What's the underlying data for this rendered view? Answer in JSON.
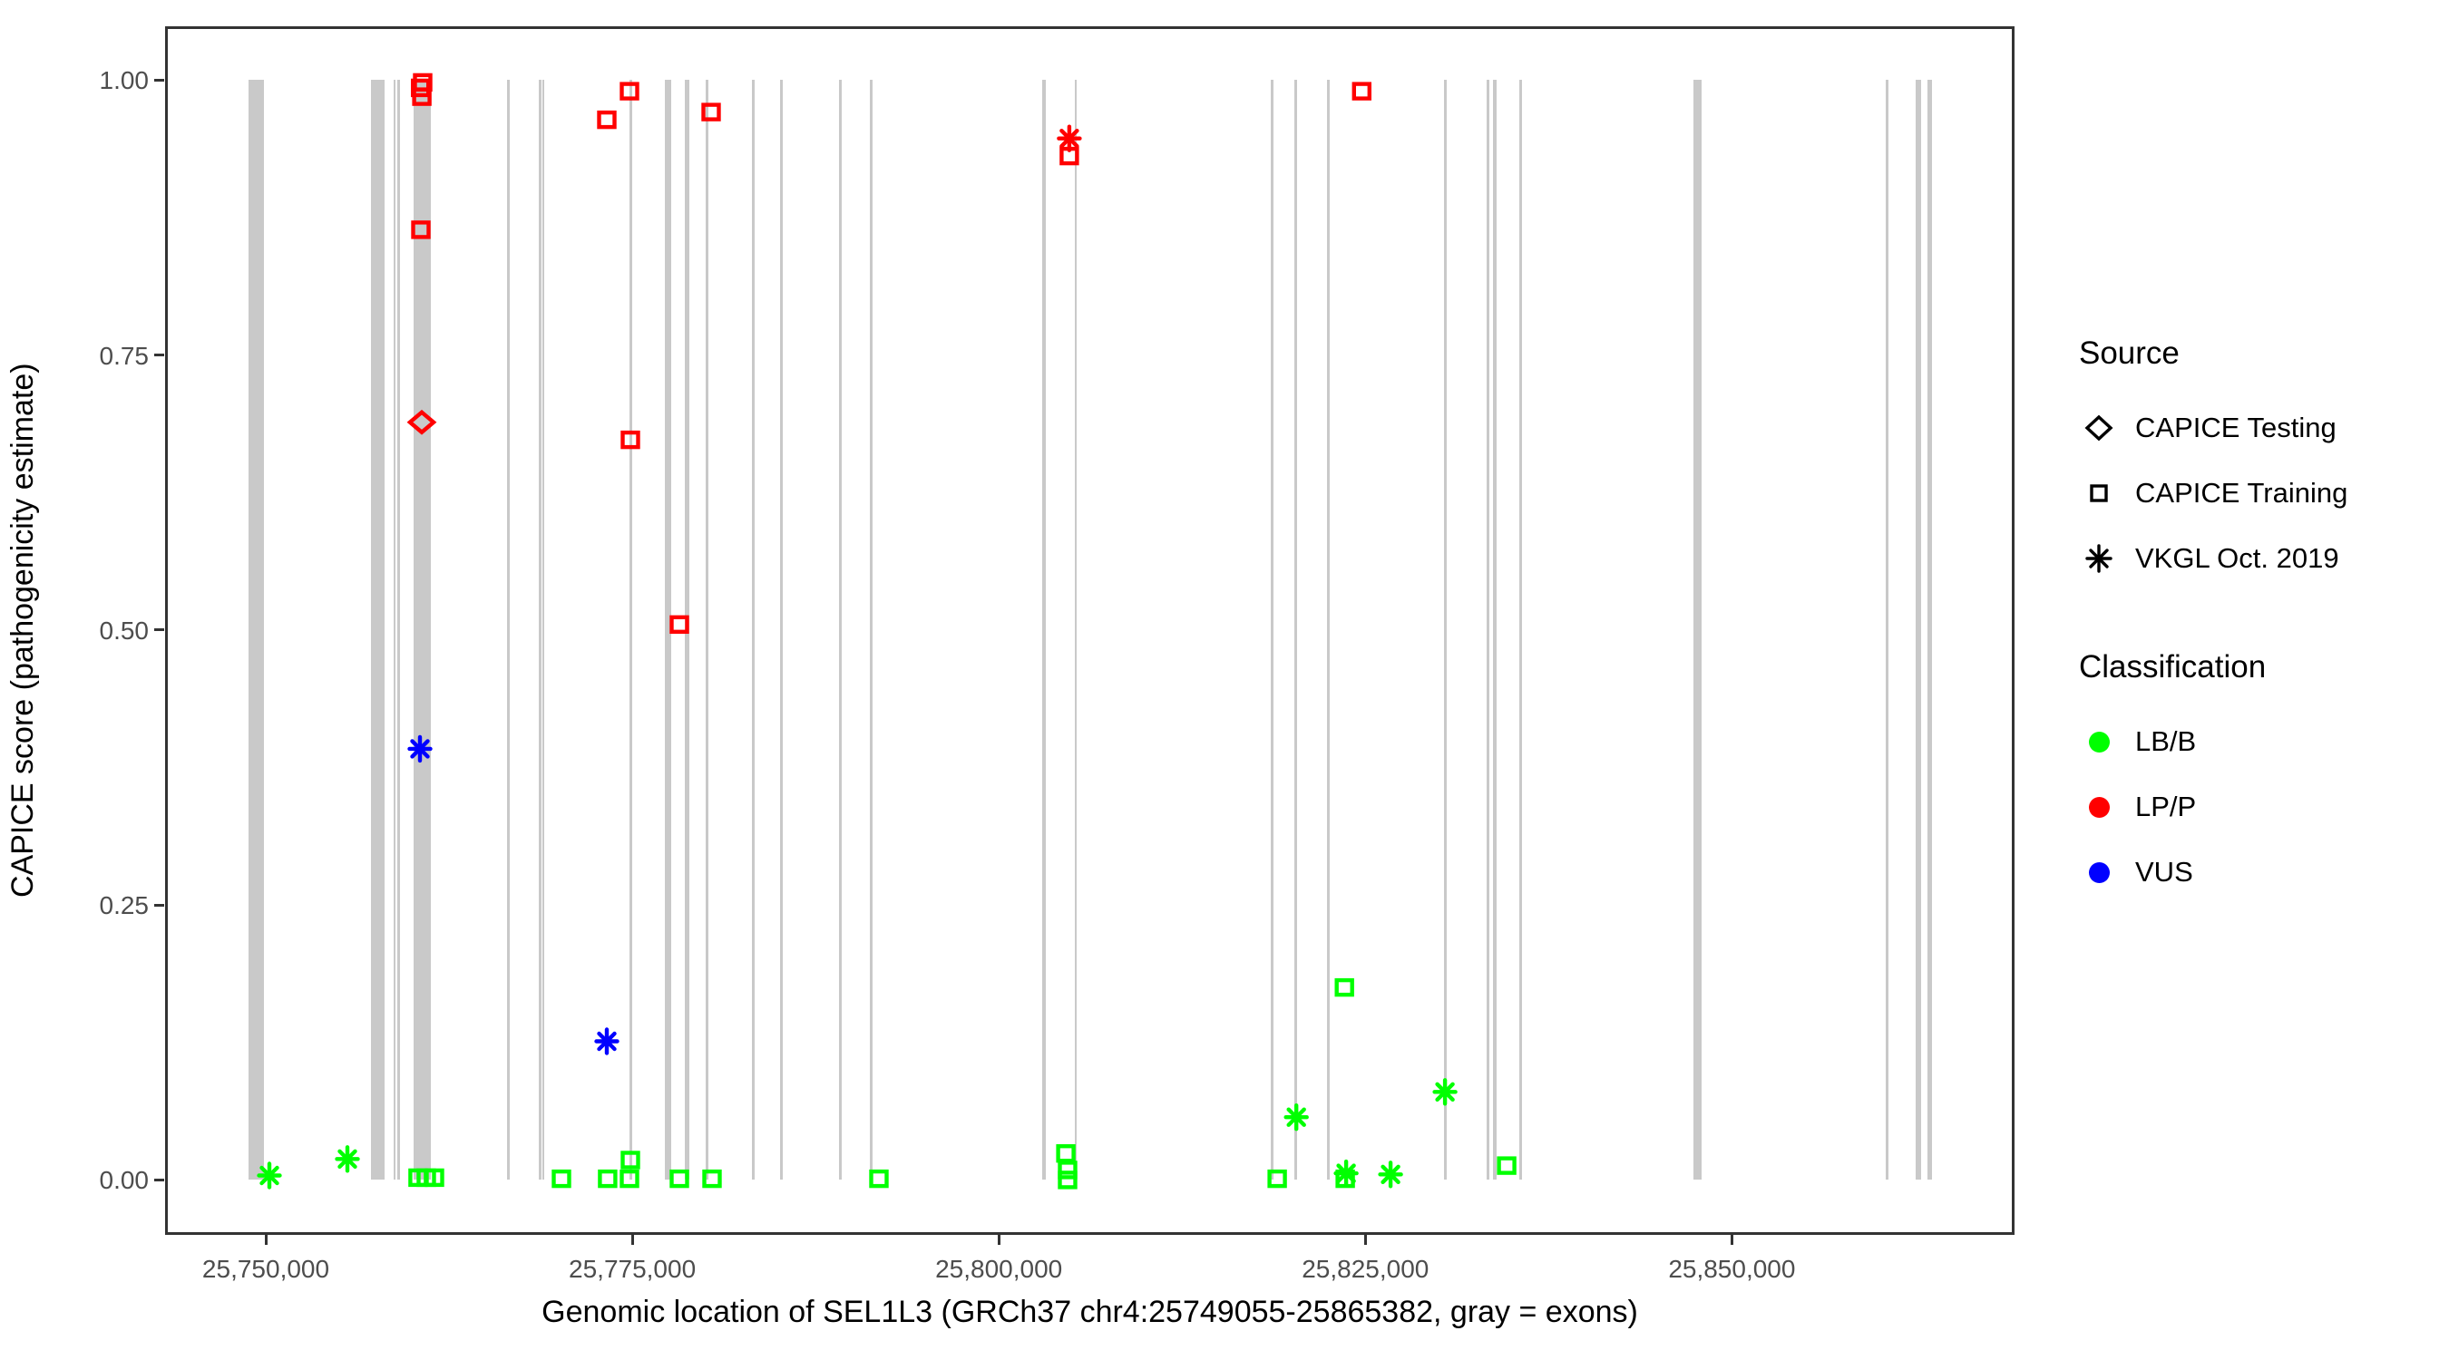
{
  "chart_data": {
    "type": "scatter",
    "title": "",
    "xlabel": "Genomic location of SEL1L3 (GRCh37 chr4:25749055-25865382, gray = exons)",
    "ylabel": "CAPICE score (pathogenicity estimate)",
    "xlim": [
      25743133,
      25869278
    ],
    "ylim": [
      -0.05,
      1.049
    ],
    "grid": false,
    "x_ticks": [
      25750000,
      25775000,
      25800000,
      25825000,
      25850000
    ],
    "x_tick_labels": [
      "25,750,000",
      "25,775,000",
      "25,800,000",
      "25,825,000",
      "25,850,000"
    ],
    "y_ticks": [
      0,
      0.25,
      0.5,
      0.75,
      1
    ],
    "y_tick_labels": [
      "0.00",
      "0.25",
      "0.50",
      "0.75",
      "1.00"
    ],
    "exon_color": "#C9C9C9",
    "exon_y_range": [
      0,
      1
    ],
    "exons": [
      [
        25748830,
        25749880
      ],
      [
        25757180,
        25758100
      ],
      [
        25758720,
        25758880
      ],
      [
        25758970,
        25759130
      ],
      [
        25760080,
        25761260
      ],
      [
        25766460,
        25766580
      ],
      [
        25768620,
        25768780
      ],
      [
        25768840,
        25769000
      ],
      [
        25774810,
        25775000
      ],
      [
        25777220,
        25777660
      ],
      [
        25778580,
        25778890
      ],
      [
        25780010,
        25780190
      ],
      [
        25783160,
        25783350
      ],
      [
        25785080,
        25785260
      ],
      [
        25789100,
        25789290
      ],
      [
        25791200,
        25791390
      ],
      [
        25802960,
        25803210
      ],
      [
        25805180,
        25805310
      ],
      [
        25818550,
        25818730
      ],
      [
        25820160,
        25820340
      ],
      [
        25822380,
        25822570
      ],
      [
        25830370,
        25830550
      ],
      [
        25833270,
        25833400
      ],
      [
        25833710,
        25833950
      ],
      [
        25835500,
        25835690
      ],
      [
        25847380,
        25847940
      ],
      [
        25860500,
        25860620
      ],
      [
        25862540,
        25862910
      ],
      [
        25863340,
        25863650
      ]
    ],
    "points": [
      {
        "pos": 25760700,
        "score": 0.998,
        "source": "CAPICE Training",
        "classification": "LP/P"
      },
      {
        "pos": 25760560,
        "score": 0.993,
        "source": "CAPICE Training",
        "classification": "LP/P"
      },
      {
        "pos": 25760650,
        "score": 0.985,
        "source": "CAPICE Training",
        "classification": "LP/P"
      },
      {
        "pos": 25760580,
        "score": 0.864,
        "source": "CAPICE Training",
        "classification": "LP/P"
      },
      {
        "pos": 25760640,
        "score": 0.689,
        "source": "CAPICE Testing",
        "classification": "LP/P"
      },
      {
        "pos": 25773260,
        "score": 0.964,
        "source": "CAPICE Training",
        "classification": "LP/P"
      },
      {
        "pos": 25774810,
        "score": 0.99,
        "source": "CAPICE Training",
        "classification": "LP/P"
      },
      {
        "pos": 25780375,
        "score": 0.971,
        "source": "CAPICE Training",
        "classification": "LP/P"
      },
      {
        "pos": 25774870,
        "score": 0.673,
        "source": "CAPICE Training",
        "classification": "LP/P"
      },
      {
        "pos": 25778210,
        "score": 0.505,
        "source": "CAPICE Training",
        "classification": "LP/P"
      },
      {
        "pos": 25804810,
        "score": 0.947,
        "source": "VKGL Oct. 2019",
        "classification": "LP/P"
      },
      {
        "pos": 25804810,
        "score": 0.931,
        "source": "CAPICE Training",
        "classification": "LP/P"
      },
      {
        "pos": 25824750,
        "score": 0.99,
        "source": "CAPICE Training",
        "classification": "LP/P"
      },
      {
        "pos": 25760520,
        "score": 0.392,
        "source": "VKGL Oct. 2019",
        "classification": "VUS"
      },
      {
        "pos": 25773260,
        "score": 0.126,
        "source": "VKGL Oct. 2019",
        "classification": "VUS"
      },
      {
        "pos": 25750250,
        "score": 0.004,
        "source": "VKGL Oct. 2019",
        "classification": "LB/B"
      },
      {
        "pos": 25755570,
        "score": 0.019,
        "source": "VKGL Oct. 2019",
        "classification": "LB/B"
      },
      {
        "pos": 25760390,
        "score": 0.002,
        "source": "CAPICE Training",
        "classification": "LB/B"
      },
      {
        "pos": 25760950,
        "score": 0.002,
        "source": "CAPICE Training",
        "classification": "LB/B"
      },
      {
        "pos": 25761510,
        "score": 0.002,
        "source": "CAPICE Training",
        "classification": "LB/B"
      },
      {
        "pos": 25770170,
        "score": 0.001,
        "source": "CAPICE Training",
        "classification": "LB/B"
      },
      {
        "pos": 25773320,
        "score": 0.001,
        "source": "CAPICE Training",
        "classification": "LB/B"
      },
      {
        "pos": 25774810,
        "score": 0.001,
        "source": "CAPICE Training",
        "classification": "LB/B"
      },
      {
        "pos": 25774870,
        "score": 0.018,
        "source": "CAPICE Training",
        "classification": "LB/B"
      },
      {
        "pos": 25778210,
        "score": 0.001,
        "source": "CAPICE Training",
        "classification": "LB/B"
      },
      {
        "pos": 25780440,
        "score": 0.001,
        "source": "CAPICE Training",
        "classification": "LB/B"
      },
      {
        "pos": 25791820,
        "score": 0.001,
        "source": "CAPICE Training",
        "classification": "LB/B"
      },
      {
        "pos": 25804570,
        "score": 0.024,
        "source": "CAPICE Training",
        "classification": "LB/B"
      },
      {
        "pos": 25804690,
        "score": 0.009,
        "source": "CAPICE Training",
        "classification": "LB/B"
      },
      {
        "pos": 25804690,
        "score": 0.0,
        "source": "CAPICE Training",
        "classification": "LB/B"
      },
      {
        "pos": 25818990,
        "score": 0.001,
        "source": "CAPICE Training",
        "classification": "LB/B"
      },
      {
        "pos": 25820290,
        "score": 0.057,
        "source": "VKGL Oct. 2019",
        "classification": "LB/B"
      },
      {
        "pos": 25823630,
        "score": 0.001,
        "source": "CAPICE Training",
        "classification": "LB/B"
      },
      {
        "pos": 25823690,
        "score": 0.006,
        "source": "VKGL Oct. 2019",
        "classification": "LB/B"
      },
      {
        "pos": 25826720,
        "score": 0.005,
        "source": "VKGL Oct. 2019",
        "classification": "LB/B"
      },
      {
        "pos": 25823570,
        "score": 0.175,
        "source": "CAPICE Training",
        "classification": "LB/B"
      },
      {
        "pos": 25830430,
        "score": 0.08,
        "source": "VKGL Oct. 2019",
        "classification": "LB/B"
      },
      {
        "pos": 25834640,
        "score": 0.013,
        "source": "CAPICE Training",
        "classification": "LB/B"
      }
    ]
  },
  "legend": {
    "source": {
      "title": "Source",
      "items": [
        {
          "label": "CAPICE Testing",
          "shape": "diamond"
        },
        {
          "label": "CAPICE Training",
          "shape": "square"
        },
        {
          "label": "VKGL Oct. 2019",
          "shape": "asterisk"
        }
      ]
    },
    "classification": {
      "title": "Classification",
      "items": [
        {
          "label": "LB/B",
          "color": "#00FF00"
        },
        {
          "label": "LP/P",
          "color": "#FF0000"
        },
        {
          "label": "VUS",
          "color": "#0000FF"
        }
      ]
    }
  }
}
